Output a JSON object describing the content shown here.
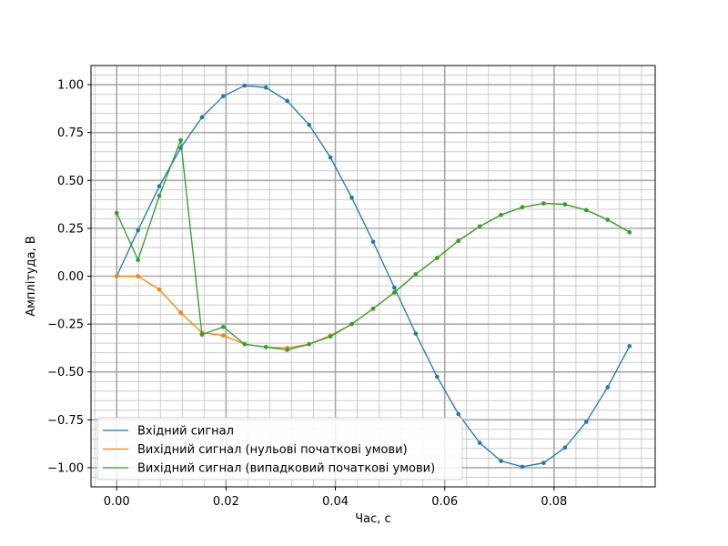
{
  "chart_data": {
    "type": "line",
    "title": "",
    "xlabel": "Час, с",
    "ylabel": "Амплітуда, В",
    "xlim": [
      -0.0047,
      0.0985
    ],
    "ylim": [
      -1.1,
      1.1
    ],
    "xticks": [
      0.0,
      0.02,
      0.04,
      0.06,
      0.08
    ],
    "xtick_labels": [
      "0.00",
      "0.02",
      "0.04",
      "0.06",
      "0.08"
    ],
    "yticks": [
      -1.0,
      -0.75,
      -0.5,
      -0.25,
      0.0,
      0.25,
      0.5,
      0.75,
      1.0
    ],
    "ytick_labels": [
      "−1.00",
      "−0.75",
      "−0.50",
      "−0.25",
      "0.00",
      "0.25",
      "0.50",
      "0.75",
      "1.00"
    ],
    "grid": true,
    "minor_grid": true,
    "legend_position": "lower-left",
    "x": [
      0.0,
      0.0039,
      0.0078,
      0.0117,
      0.0156,
      0.0195,
      0.0234,
      0.0273,
      0.0312,
      0.0352,
      0.0391,
      0.043,
      0.0469,
      0.0508,
      0.0547,
      0.0586,
      0.0625,
      0.0664,
      0.0703,
      0.0742,
      0.0781,
      0.082,
      0.0859,
      0.0898,
      0.0938
    ],
    "series": [
      {
        "name": "Вхідний сигнал",
        "color": "#1f77b4",
        "values": [
          0.0,
          0.24,
          0.47,
          0.67,
          0.83,
          0.94,
          0.995,
          0.985,
          0.915,
          0.79,
          0.62,
          0.41,
          0.18,
          -0.06,
          -0.3,
          -0.525,
          -0.72,
          -0.87,
          -0.965,
          -0.995,
          -0.975,
          -0.895,
          -0.76,
          -0.58,
          -0.365
        ]
      },
      {
        "name": "Вихідний сигнал (нульові початкові умови)",
        "color": "#ff7f0e",
        "values": [
          0.0,
          0.0,
          -0.07,
          -0.19,
          -0.295,
          -0.31,
          -0.355,
          -0.37,
          -0.375,
          -0.355,
          -0.31,
          -0.25,
          -0.17,
          -0.085,
          0.01,
          0.095,
          0.185,
          0.26,
          0.32,
          0.36,
          0.38,
          0.375,
          0.345,
          0.295,
          0.23
        ]
      },
      {
        "name": "Вихідний сигнал (випадковий початкові умови)",
        "color": "#2ca02c",
        "values": [
          0.33,
          0.085,
          0.42,
          0.71,
          -0.305,
          -0.265,
          -0.355,
          -0.37,
          -0.385,
          -0.355,
          -0.315,
          -0.25,
          -0.17,
          -0.085,
          0.01,
          0.095,
          0.185,
          0.26,
          0.32,
          0.36,
          0.38,
          0.375,
          0.345,
          0.295,
          0.23
        ]
      }
    ]
  }
}
